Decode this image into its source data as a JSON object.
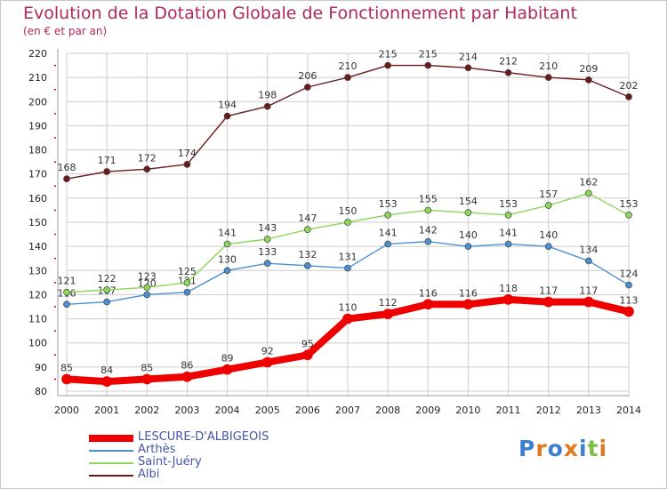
{
  "header": {
    "title": "Evolution de la Dotation Globale de Fonctionnement par Habitant",
    "subtitle": "(en € et par an)"
  },
  "logo": {
    "text": "Proxiti"
  },
  "colors": {
    "grid": "#cccccc",
    "axis_minor": "#cc0000",
    "title": "#b0285c"
  },
  "chart_data": {
    "type": "line",
    "title": "Evolution de la Dotation Globale de Fonctionnement par Habitant",
    "subtitle": "(en € et par an)",
    "xlabel": "",
    "ylabel": "",
    "ylim": [
      80,
      220
    ],
    "yticks": [
      80,
      90,
      100,
      110,
      120,
      130,
      140,
      150,
      160,
      170,
      180,
      190,
      200,
      210,
      220
    ],
    "x": [
      "2000",
      "2001",
      "2002",
      "2003",
      "2004",
      "2005",
      "2006",
      "2007",
      "2008",
      "2009",
      "2010",
      "2011",
      "2012",
      "2013",
      "2014"
    ],
    "grid": true,
    "legend_position": "bottom-left",
    "series": [
      {
        "name": "LESCURE-D'ALBIGEOIS",
        "color": "#ee0000",
        "emphasis": true,
        "values": [
          85,
          84,
          85,
          86,
          89,
          92,
          95,
          110,
          112,
          116,
          116,
          118,
          117,
          117,
          113
        ]
      },
      {
        "name": "Arthès",
        "color": "#4a8fd0",
        "emphasis": false,
        "values": [
          116,
          117,
          120,
          121,
          130,
          133,
          132,
          131,
          141,
          142,
          140,
          141,
          140,
          134,
          124
        ]
      },
      {
        "name": "Saint-Juéry",
        "color": "#8cd65a",
        "emphasis": false,
        "values": [
          121,
          122,
          123,
          125,
          141,
          143,
          147,
          150,
          153,
          155,
          154,
          153,
          157,
          162,
          153
        ]
      },
      {
        "name": "Albi",
        "color": "#6b1a1a",
        "emphasis": false,
        "values": [
          168,
          171,
          172,
          174,
          194,
          198,
          206,
          210,
          215,
          215,
          214,
          212,
          210,
          209,
          202
        ]
      }
    ]
  }
}
